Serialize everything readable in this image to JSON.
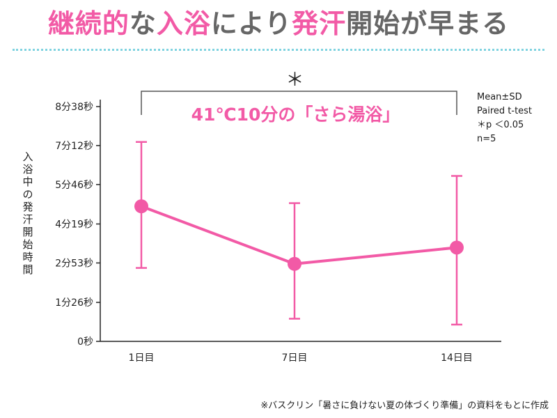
{
  "title": {
    "parts": [
      {
        "text": "継続的",
        "style": "hl"
      },
      {
        "text": "な",
        "style": "nm"
      },
      {
        "text": "入浴",
        "style": "hl"
      },
      {
        "text": "により",
        "style": "nm"
      },
      {
        "text": "発汗",
        "style": "hl"
      },
      {
        "text": "開始が早まる",
        "style": "nm"
      }
    ]
  },
  "colors": {
    "accent": "#f25aa6",
    "title_gray": "#666666",
    "divider": "#7fd3e0",
    "axis": "#222222"
  },
  "significance_marker": "＊",
  "notes": [
    "Mean±SD",
    "Paired t-test",
    "＊p ＜0.05",
    "n=5"
  ],
  "footnote": "※バスクリン「暑さに負けない夏の体づくり準備」の資料をもとに作成",
  "chart_data": {
    "type": "line",
    "title": "",
    "annotation": "41℃10分の「さら湯浴」",
    "xlabel": "",
    "ylabel": "入浴中の発汗開始時間",
    "categories": [
      "1日目",
      "7日目",
      "14日目"
    ],
    "y_unit": "seconds",
    "ylim": [
      0,
      518
    ],
    "yticks": [
      {
        "value": 0,
        "label": "0秒"
      },
      {
        "value": 86,
        "label": "1分26秒"
      },
      {
        "value": 173,
        "label": "2分53秒"
      },
      {
        "value": 259,
        "label": "4分19秒"
      },
      {
        "value": 346,
        "label": "5分46秒"
      },
      {
        "value": 432,
        "label": "7分12秒"
      },
      {
        "value": 518,
        "label": "8分38秒"
      }
    ],
    "series": [
      {
        "values": [
          298,
          171,
          207
        ],
        "error_low": [
          162,
          50,
          37
        ],
        "error_high": [
          440,
          305,
          365
        ]
      }
    ],
    "significance": {
      "from": 0,
      "to": 2,
      "label": "＊"
    },
    "grid": false,
    "legend": "none"
  }
}
